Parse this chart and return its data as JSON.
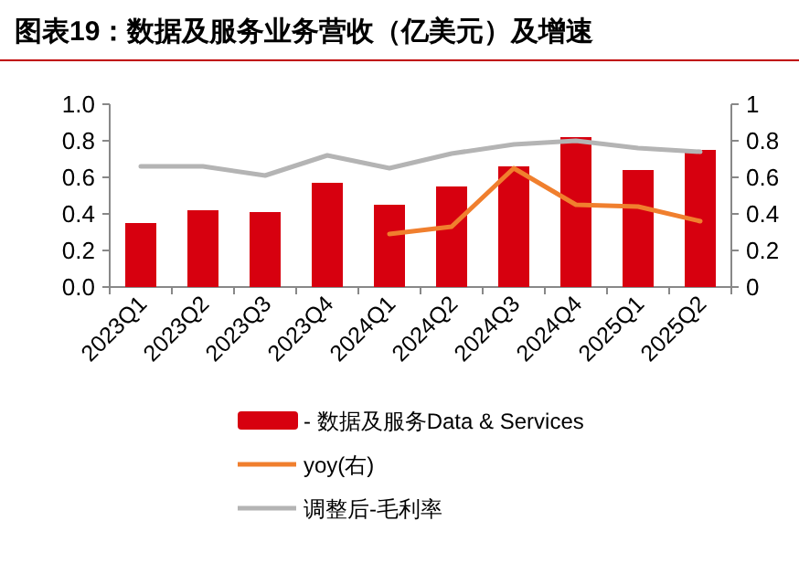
{
  "chart_data": {
    "type": "bar",
    "title": "图表19：数据及服务业务营收（亿美元）及增速",
    "categories": [
      "2023Q1",
      "2023Q2",
      "2023Q3",
      "2023Q4",
      "2024Q1",
      "2024Q2",
      "2024Q3",
      "2024Q4",
      "2025Q1",
      "2025Q2"
    ],
    "series": [
      {
        "name": "- 数据及服务Data & Services",
        "type": "bar",
        "color": "#d7000f",
        "values": [
          0.35,
          0.42,
          0.41,
          0.57,
          0.45,
          0.55,
          0.66,
          0.82,
          0.64,
          0.75
        ]
      },
      {
        "name": "yoy(右)",
        "type": "line",
        "axis": "y2",
        "color": "#f07f2e",
        "values": [
          null,
          null,
          null,
          null,
          0.29,
          0.33,
          0.65,
          0.45,
          0.44,
          0.36
        ]
      },
      {
        "name": "调整后-毛利率",
        "type": "line",
        "color": "#b4b4b4",
        "values": [
          0.66,
          0.66,
          0.61,
          0.72,
          0.65,
          0.73,
          0.78,
          0.8,
          0.76,
          0.74
        ]
      }
    ],
    "ylim": [
      0,
      1
    ],
    "yticks": [
      {
        "value": 0,
        "label": "0.0"
      },
      {
        "value": 0.2,
        "label": "0.2"
      },
      {
        "value": 0.4,
        "label": "0.4"
      },
      {
        "value": 0.6,
        "label": "0.6"
      },
      {
        "value": 0.8,
        "label": "0.8"
      },
      {
        "value": 1,
        "label": "1.0"
      }
    ],
    "y2lim": [
      0,
      1
    ],
    "y2ticks": [
      0,
      0.2,
      0.4,
      0.6,
      0.8,
      1
    ],
    "legend": "bottom"
  }
}
